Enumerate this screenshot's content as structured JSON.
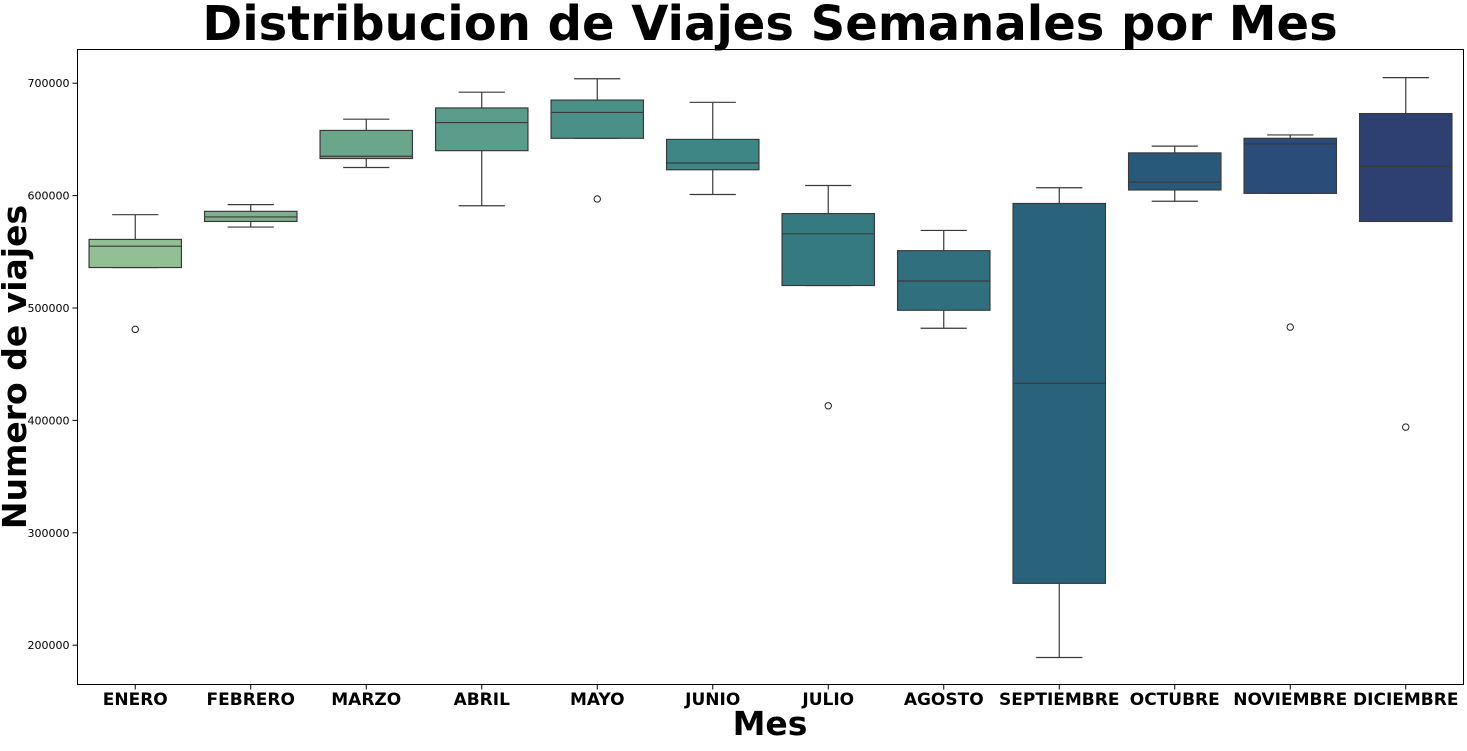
{
  "chart_data": {
    "type": "box",
    "title": "Distribucion de Viajes Semanales por Mes",
    "xlabel": "Mes",
    "ylabel": "Numero de viajes",
    "ylim": [
      165000,
      730000
    ],
    "yticks": [
      200000,
      300000,
      400000,
      500000,
      600000,
      700000
    ],
    "grid": false,
    "categories": [
      "ENERO",
      "FEBRERO",
      "MARZO",
      "ABRIL",
      "MAYO",
      "JUNIO",
      "JULIO",
      "AGOSTO",
      "SEPTIEMBRE",
      "OCTUBRE",
      "NOVIEMBRE",
      "DICIEMBRE"
    ],
    "boxes": [
      {
        "whisker_low": 536000,
        "q1": 536000,
        "median": 555000,
        "q3": 561000,
        "whisker_high": 583000,
        "outliers": [
          481000
        ],
        "color": "#93bf94"
      },
      {
        "whisker_low": 572000,
        "q1": 577000,
        "median": 581000,
        "q3": 586000,
        "whisker_high": 592000,
        "outliers": [],
        "color": "#7eb08d"
      },
      {
        "whisker_low": 625000,
        "q1": 633000,
        "median": 635000,
        "q3": 658000,
        "whisker_high": 668000,
        "outliers": [],
        "color": "#6aa78a"
      },
      {
        "whisker_low": 591000,
        "q1": 640000,
        "median": 665000,
        "q3": 678000,
        "whisker_high": 692000,
        "outliers": [],
        "color": "#599d8a"
      },
      {
        "whisker_low": 651000,
        "q1": 651000,
        "median": 674000,
        "q3": 685000,
        "whisker_high": 704000,
        "outliers": [
          597000
        ],
        "color": "#4a9087"
      },
      {
        "whisker_low": 601000,
        "q1": 623000,
        "median": 629000,
        "q3": 650000,
        "whisker_high": 683000,
        "outliers": [],
        "color": "#3e8585"
      },
      {
        "whisker_low": 520000,
        "q1": 520000,
        "median": 566000,
        "q3": 584000,
        "whisker_high": 609000,
        "outliers": [
          413000
        ],
        "color": "#367a81"
      },
      {
        "whisker_low": 482000,
        "q1": 498000,
        "median": 524000,
        "q3": 551000,
        "whisker_high": 569000,
        "outliers": [],
        "color": "#2f6f7e"
      },
      {
        "whisker_low": 189000,
        "q1": 255000,
        "median": 433000,
        "q3": 593000,
        "whisker_high": 607000,
        "outliers": [],
        "color": "#29627b"
      },
      {
        "whisker_low": 595000,
        "q1": 605000,
        "median": 612000,
        "q3": 638000,
        "whisker_high": 644000,
        "outliers": [],
        "color": "#28587a"
      },
      {
        "whisker_low": 602000,
        "q1": 602000,
        "median": 646000,
        "q3": 651000,
        "whisker_high": 654000,
        "outliers": [
          483000
        ],
        "color": "#2a4c78"
      },
      {
        "whisker_low": 577000,
        "q1": 577000,
        "median": 626000,
        "q3": 673000,
        "whisker_high": 705000,
        "outliers": [
          394000
        ],
        "color": "#2d4071"
      }
    ]
  }
}
